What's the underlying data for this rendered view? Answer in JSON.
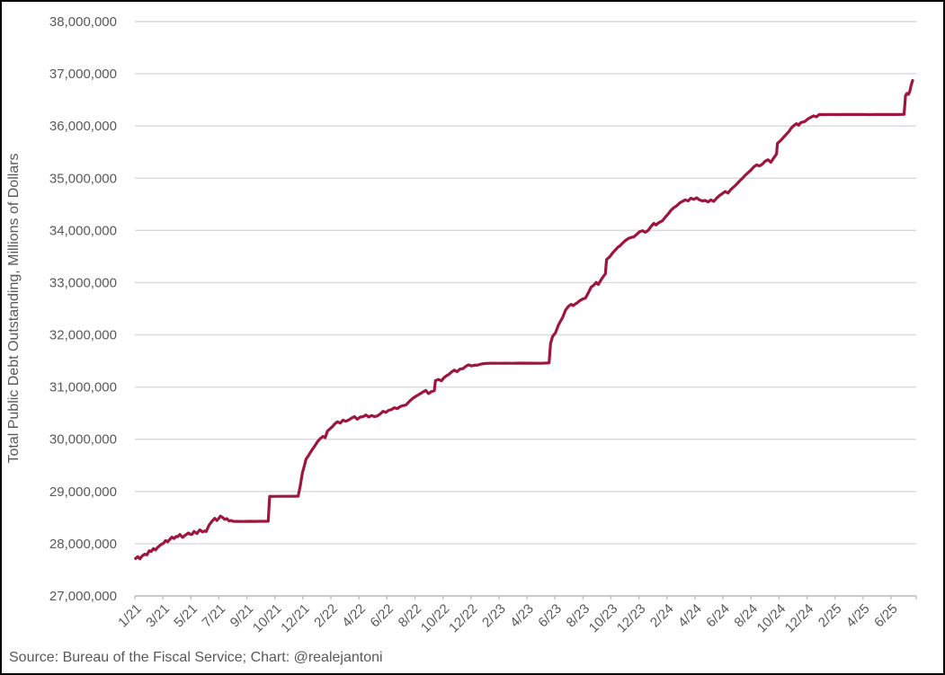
{
  "source_note": "Source: Bureau of the Fiscal Service; Chart: @realejantoni",
  "chart_data": {
    "type": "line",
    "title": "",
    "xlabel": "",
    "ylabel": "Total Public Debt Outstanding, Millions of Dollars",
    "ylim": [
      27000000,
      38000000
    ],
    "y_tick_interval": 1000000,
    "grid": true,
    "legend_position": "none",
    "colors": {
      "line": "#9E163E",
      "gridline": "#D9D9D9",
      "axis": "#BFBFBF",
      "text": "#595959",
      "frame_border": "#000000"
    },
    "x_tick_labels": [
      "1/21",
      "3/21",
      "5/21",
      "7/21",
      "9/21",
      "10/21",
      "12/21",
      "2/22",
      "4/22",
      "6/22",
      "8/22",
      "10/22",
      "12/22",
      "2/23",
      "4/23",
      "6/23",
      "8/23",
      "10/23",
      "12/23",
      "2/24",
      "4/24",
      "6/24",
      "8/24",
      "10/24",
      "12/24",
      "2/25",
      "4/25",
      "6/25"
    ],
    "x_unit": "months_since_jan_2021",
    "series": [
      {
        "name": "Total Public Debt Outstanding",
        "points": [
          [
            0.05,
            27716000
          ],
          [
            0.2,
            27750000
          ],
          [
            0.35,
            27710000
          ],
          [
            0.5,
            27762000
          ],
          [
            0.7,
            27800000
          ],
          [
            0.85,
            27785000
          ],
          [
            1.0,
            27864000
          ],
          [
            1.15,
            27850000
          ],
          [
            1.3,
            27905000
          ],
          [
            1.45,
            27880000
          ],
          [
            1.6,
            27930000
          ],
          [
            1.75,
            27965000
          ],
          [
            1.9,
            27995000
          ],
          [
            2.0,
            28005000
          ],
          [
            2.15,
            28060000
          ],
          [
            2.3,
            28035000
          ],
          [
            2.45,
            28085000
          ],
          [
            2.6,
            28125000
          ],
          [
            2.75,
            28100000
          ],
          [
            2.9,
            28140000
          ],
          [
            3.0,
            28133000
          ],
          [
            3.15,
            28175000
          ],
          [
            3.35,
            28120000
          ],
          [
            3.55,
            28165000
          ],
          [
            3.75,
            28205000
          ],
          [
            3.9,
            28180000
          ],
          [
            4.0,
            28175000
          ],
          [
            4.15,
            28235000
          ],
          [
            4.35,
            28195000
          ],
          [
            4.55,
            28265000
          ],
          [
            4.75,
            28225000
          ],
          [
            4.9,
            28245000
          ],
          [
            5.0,
            28232000
          ],
          [
            5.2,
            28355000
          ],
          [
            5.4,
            28425000
          ],
          [
            5.6,
            28485000
          ],
          [
            5.75,
            28445000
          ],
          [
            5.9,
            28490000
          ],
          [
            6.0,
            28529000
          ],
          [
            6.15,
            28505000
          ],
          [
            6.3,
            28465000
          ],
          [
            6.45,
            28480000
          ],
          [
            6.6,
            28435000
          ],
          [
            6.75,
            28445000
          ],
          [
            6.9,
            28428000
          ],
          [
            7.2,
            28427000
          ],
          [
            7.6,
            28426000
          ],
          [
            8.0,
            28428000
          ],
          [
            8.4,
            28427000
          ],
          [
            8.8,
            28429000
          ],
          [
            9.15,
            28428000
          ],
          [
            9.35,
            28430000
          ],
          [
            9.45,
            28908000
          ],
          [
            9.7,
            28906000
          ],
          [
            10.0,
            28908000
          ],
          [
            10.4,
            28907000
          ],
          [
            10.8,
            28908000
          ],
          [
            11.2,
            28909000
          ],
          [
            11.45,
            28910000
          ],
          [
            11.6,
            29105000
          ],
          [
            11.75,
            29355000
          ],
          [
            11.9,
            29505000
          ],
          [
            12.0,
            29617000
          ],
          [
            12.2,
            29700000
          ],
          [
            12.4,
            29785000
          ],
          [
            12.6,
            29865000
          ],
          [
            12.8,
            29950000
          ],
          [
            13.0,
            30012000
          ],
          [
            13.2,
            30055000
          ],
          [
            13.35,
            30030000
          ],
          [
            13.5,
            30155000
          ],
          [
            13.7,
            30205000
          ],
          [
            13.9,
            30255000
          ],
          [
            14.0,
            30290000
          ],
          [
            14.2,
            30335000
          ],
          [
            14.4,
            30310000
          ],
          [
            14.6,
            30365000
          ],
          [
            14.8,
            30345000
          ],
          [
            15.0,
            30371000
          ],
          [
            15.2,
            30405000
          ],
          [
            15.4,
            30435000
          ],
          [
            15.6,
            30385000
          ],
          [
            15.8,
            30425000
          ],
          [
            16.0,
            30433000
          ],
          [
            16.2,
            30465000
          ],
          [
            16.4,
            30425000
          ],
          [
            16.6,
            30455000
          ],
          [
            16.8,
            30435000
          ],
          [
            17.0,
            30447000
          ],
          [
            17.2,
            30485000
          ],
          [
            17.4,
            30535000
          ],
          [
            17.6,
            30515000
          ],
          [
            17.8,
            30555000
          ],
          [
            18.0,
            30569000
          ],
          [
            18.2,
            30605000
          ],
          [
            18.4,
            30585000
          ],
          [
            18.6,
            30625000
          ],
          [
            18.8,
            30645000
          ],
          [
            19.0,
            30655000
          ],
          [
            19.25,
            30725000
          ],
          [
            19.5,
            30785000
          ],
          [
            19.75,
            30830000
          ],
          [
            20.0,
            30871000
          ],
          [
            20.2,
            30905000
          ],
          [
            20.4,
            30935000
          ],
          [
            20.6,
            30875000
          ],
          [
            20.8,
            30915000
          ],
          [
            21.0,
            30929000
          ],
          [
            21.08,
            31124000
          ],
          [
            21.3,
            31145000
          ],
          [
            21.5,
            31120000
          ],
          [
            21.7,
            31185000
          ],
          [
            21.9,
            31225000
          ],
          [
            22.0,
            31238000
          ],
          [
            22.2,
            31285000
          ],
          [
            22.4,
            31325000
          ],
          [
            22.6,
            31295000
          ],
          [
            22.8,
            31345000
          ],
          [
            23.0,
            31351000
          ],
          [
            23.2,
            31395000
          ],
          [
            23.4,
            31425000
          ],
          [
            23.6,
            31405000
          ],
          [
            23.8,
            31418000
          ],
          [
            24.0,
            31419000
          ],
          [
            24.3,
            31442000
          ],
          [
            24.6,
            31454000
          ],
          [
            25.0,
            31456000
          ],
          [
            25.5,
            31455000
          ],
          [
            26.0,
            31457000
          ],
          [
            26.5,
            31455000
          ],
          [
            27.0,
            31458000
          ],
          [
            27.5,
            31456000
          ],
          [
            28.0,
            31457000
          ],
          [
            28.5,
            31455000
          ],
          [
            28.9,
            31460000
          ],
          [
            29.05,
            31465000
          ],
          [
            29.15,
            31833000
          ],
          [
            29.3,
            31972000
          ],
          [
            29.5,
            32040000
          ],
          [
            29.7,
            32185000
          ],
          [
            29.9,
            32285000
          ],
          [
            30.0,
            32332000
          ],
          [
            30.2,
            32470000
          ],
          [
            30.4,
            32545000
          ],
          [
            30.6,
            32585000
          ],
          [
            30.75,
            32560000
          ],
          [
            30.9,
            32595000
          ],
          [
            31.0,
            32609000
          ],
          [
            31.2,
            32655000
          ],
          [
            31.4,
            32685000
          ],
          [
            31.6,
            32705000
          ],
          [
            31.8,
            32805000
          ],
          [
            32.0,
            32914000
          ],
          [
            32.2,
            32955000
          ],
          [
            32.35,
            33005000
          ],
          [
            32.5,
            32965000
          ],
          [
            32.7,
            33055000
          ],
          [
            32.9,
            33135000
          ],
          [
            33.0,
            33167000
          ],
          [
            33.08,
            33442000
          ],
          [
            33.3,
            33495000
          ],
          [
            33.5,
            33565000
          ],
          [
            33.7,
            33625000
          ],
          [
            33.9,
            33685000
          ],
          [
            34.0,
            33699000
          ],
          [
            34.2,
            33755000
          ],
          [
            34.4,
            33805000
          ],
          [
            34.6,
            33845000
          ],
          [
            34.8,
            33865000
          ],
          [
            35.0,
            33878000
          ],
          [
            35.2,
            33925000
          ],
          [
            35.4,
            33975000
          ],
          [
            35.6,
            33995000
          ],
          [
            35.8,
            33965000
          ],
          [
            36.0,
            34001000
          ],
          [
            36.2,
            34075000
          ],
          [
            36.4,
            34135000
          ],
          [
            36.55,
            34105000
          ],
          [
            36.7,
            34140000
          ],
          [
            36.85,
            34165000
          ],
          [
            37.0,
            34183000
          ],
          [
            37.2,
            34255000
          ],
          [
            37.4,
            34315000
          ],
          [
            37.6,
            34385000
          ],
          [
            37.8,
            34435000
          ],
          [
            38.0,
            34472000
          ],
          [
            38.2,
            34525000
          ],
          [
            38.4,
            34555000
          ],
          [
            38.6,
            34585000
          ],
          [
            38.8,
            34565000
          ],
          [
            39.0,
            34617000
          ],
          [
            39.2,
            34595000
          ],
          [
            39.4,
            34625000
          ],
          [
            39.6,
            34585000
          ],
          [
            39.8,
            34565000
          ],
          [
            40.0,
            34575000
          ],
          [
            40.2,
            34545000
          ],
          [
            40.4,
            34585000
          ],
          [
            40.6,
            34555000
          ],
          [
            40.8,
            34615000
          ],
          [
            41.0,
            34667000
          ],
          [
            41.2,
            34705000
          ],
          [
            41.4,
            34745000
          ],
          [
            41.6,
            34715000
          ],
          [
            41.8,
            34785000
          ],
          [
            42.0,
            34832000
          ],
          [
            42.2,
            34885000
          ],
          [
            42.4,
            34945000
          ],
          [
            42.6,
            34995000
          ],
          [
            42.8,
            35055000
          ],
          [
            43.0,
            35105000
          ],
          [
            43.2,
            35155000
          ],
          [
            43.4,
            35215000
          ],
          [
            43.6,
            35255000
          ],
          [
            43.8,
            35235000
          ],
          [
            44.0,
            35266000
          ],
          [
            44.2,
            35325000
          ],
          [
            44.4,
            35355000
          ],
          [
            44.6,
            35305000
          ],
          [
            44.8,
            35385000
          ],
          [
            45.0,
            35465000
          ],
          [
            45.07,
            35670000
          ],
          [
            45.3,
            35725000
          ],
          [
            45.5,
            35785000
          ],
          [
            45.7,
            35845000
          ],
          [
            45.9,
            35905000
          ],
          [
            46.0,
            35950000
          ],
          [
            46.2,
            36005000
          ],
          [
            46.4,
            36045000
          ],
          [
            46.55,
            36015000
          ],
          [
            46.7,
            36065000
          ],
          [
            47.0,
            36087000
          ],
          [
            47.2,
            36135000
          ],
          [
            47.4,
            36165000
          ],
          [
            47.6,
            36195000
          ],
          [
            47.8,
            36175000
          ],
          [
            48.0,
            36220000
          ],
          [
            48.4,
            36218000
          ],
          [
            48.8,
            36221000
          ],
          [
            49.2,
            36219000
          ],
          [
            49.6,
            36220000
          ],
          [
            50.0,
            36222000
          ],
          [
            50.5,
            36220000
          ],
          [
            51.0,
            36221000
          ],
          [
            51.5,
            36219000
          ],
          [
            52.0,
            36221000
          ],
          [
            52.5,
            36220000
          ],
          [
            53.0,
            36222000
          ],
          [
            53.4,
            36220000
          ],
          [
            53.8,
            36221000
          ],
          [
            53.95,
            36224000
          ],
          [
            54.05,
            36582000
          ],
          [
            54.15,
            36625000
          ],
          [
            54.25,
            36605000
          ],
          [
            54.35,
            36665000
          ],
          [
            54.45,
            36785000
          ],
          [
            54.55,
            36872000
          ]
        ]
      }
    ]
  }
}
